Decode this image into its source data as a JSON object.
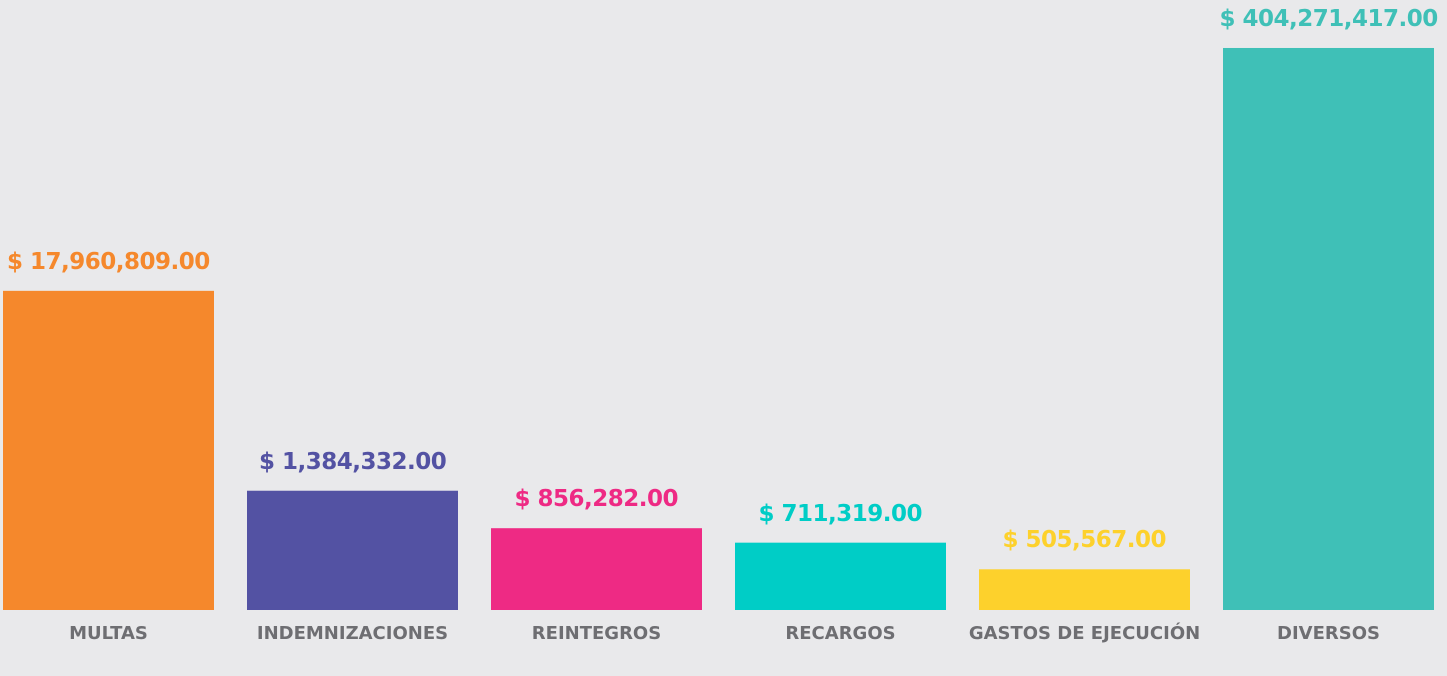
{
  "chart_data": {
    "type": "bar",
    "categories": [
      "MULTAS",
      "INDEMNIZACIONES",
      "REINTEGROS",
      "RECARGOS",
      "GASTOS DE EJECUCIÓN",
      "DIVERSOS"
    ],
    "values": [
      17960809,
      1384332,
      856282,
      711319,
      505567,
      404271417
    ],
    "value_labels": [
      "$ 17,960,809.00",
      "$ 1,384,332.00",
      "$ 856,282.00",
      "$ 711,319.00",
      "$ 505,567.00",
      "$ 404,271,417.00"
    ],
    "colors": [
      "#f5882c",
      "#5352a3",
      "#ee2a84",
      "#00cdc6",
      "#fdd12c",
      "#3fc0b7"
    ],
    "log_scale": true,
    "ylim": [
      300000,
      420000000
    ]
  }
}
